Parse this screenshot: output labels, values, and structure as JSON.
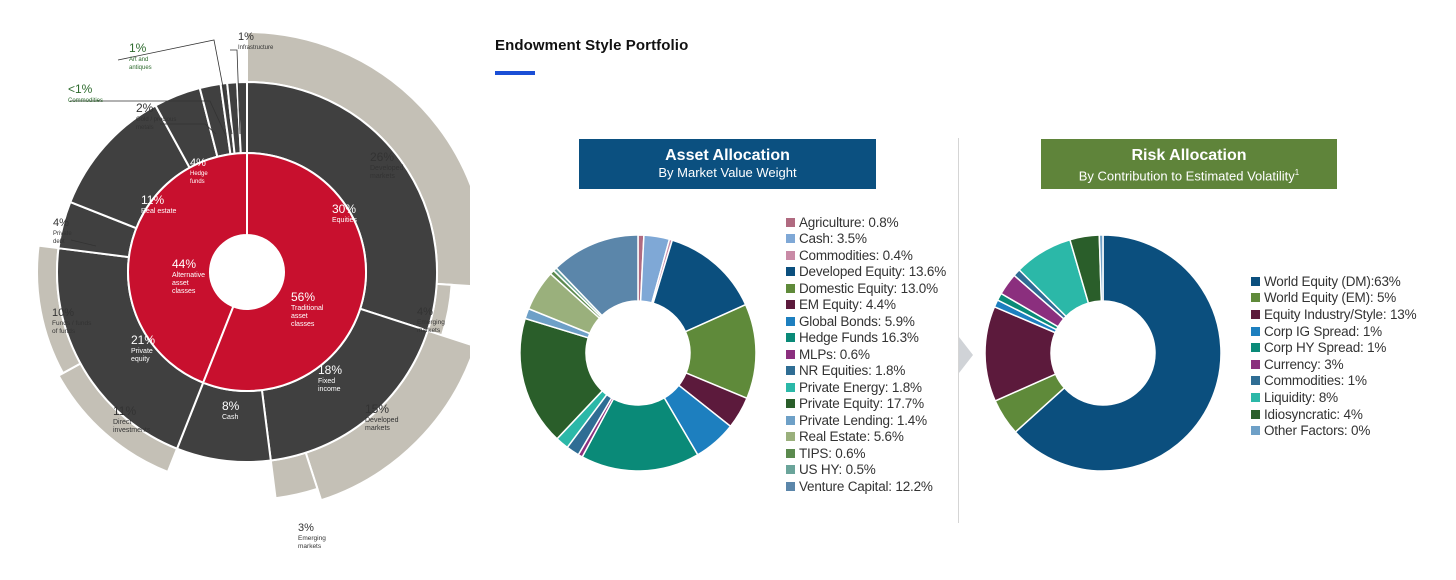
{
  "sunburst": {
    "inner": [
      {
        "pct": "44%",
        "name": "Alternative\nasset\nclasses",
        "value": 44,
        "color": "#c8102e"
      },
      {
        "pct": "56%",
        "name": "Traditional\nasset\nclasses",
        "value": 56,
        "color": "#c8102e"
      }
    ],
    "middle": [
      {
        "pct": "30%",
        "name": "Equities",
        "value": 30
      },
      {
        "pct": "18%",
        "name": "Fixed\nincome",
        "value": 18
      },
      {
        "pct": "8%",
        "name": "Cash",
        "value": 8
      },
      {
        "pct": "21%",
        "name": "Private\nequity",
        "value": 21
      },
      {
        "pct": "4%",
        "name": "Private\ndebt",
        "value": 4
      },
      {
        "pct": "11%",
        "name": "Real estate",
        "value": 11
      },
      {
        "pct": "4%",
        "name": "Hedge\nfunds",
        "value": 4
      },
      {
        "pct": "2%",
        "name": "Gold / precious\nmetals",
        "value": 2
      },
      {
        "pct": "<1%",
        "name": "Commodities",
        "value": 1
      },
      {
        "pct": "1%",
        "name": "Art and\nantiques",
        "value": 1
      },
      {
        "pct": "1%",
        "name": "Infrastructure",
        "value": 1
      }
    ],
    "outer": [
      {
        "pct": "26%",
        "name": "Developed\nmarkets",
        "value": 26
      },
      {
        "pct": "4%",
        "name": "Emerging\nmarkets",
        "value": 4
      },
      {
        "pct": "15%",
        "name": "Developed\nmarkets",
        "value": 15
      },
      {
        "pct": "3%",
        "name": "Emerging\nmarkets",
        "value": 3
      },
      {
        "pct": "11%",
        "name": "Direct\ninvestments",
        "value": 11
      },
      {
        "pct": "10%",
        "name": "Funds / funds\nof funds",
        "value": 10
      }
    ],
    "colors": {
      "dark": "#404040",
      "outer": "#c4c0b6",
      "red": "#c8102e"
    }
  },
  "header": {
    "title": "Endowment Style Portfolio",
    "accent": "#1a4fd6"
  },
  "chart_data": [
    {
      "type": "pie",
      "title": "Asset Allocation",
      "subtitle": "By Market Value Weight",
      "header_color": "#0b5080",
      "labels": [
        "Agriculture: 0.8%",
        "Cash: 3.5%",
        "Commodities: 0.4%",
        "Developed Equity: 13.6%",
        "Domestic Equity: 13.0%",
        "EM Equity: 4.4%",
        "Global Bonds: 5.9%",
        "Hedge Funds 16.3%",
        "MLPs: 0.6%",
        "NR Equities: 1.8%",
        "Private Energy: 1.8%",
        "Private Equity: 17.7%",
        "Private Lending: 1.4%",
        "Real Estate: 5.6%",
        "TIPS: 0.6%",
        "US HY: 0.5%",
        "Venture Capital: 12.2%"
      ],
      "values": [
        0.8,
        3.5,
        0.4,
        13.6,
        13.0,
        4.4,
        5.9,
        16.3,
        0.6,
        1.8,
        1.8,
        17.7,
        1.4,
        5.6,
        0.6,
        0.5,
        12.2
      ],
      "colors": [
        "#b06a80",
        "#7fa8d6",
        "#c98aa6",
        "#0b4f7e",
        "#5f8a3a",
        "#5c1a3c",
        "#1d7fbf",
        "#0a8a78",
        "#8b2f7e",
        "#2f6d94",
        "#2bb8a8",
        "#2a5e2a",
        "#6ea0c7",
        "#9ab07c",
        "#5b8a4e",
        "#6aa49a",
        "#5b86aa"
      ]
    },
    {
      "type": "pie",
      "title": "Risk Allocation",
      "subtitle": "By Contribution to Estimated Volatility",
      "subtitle_sup": "1",
      "header_color": "#5f843a",
      "labels": [
        "World Equity (DM):63%",
        "World Equity (EM): 5%",
        "Equity Industry/Style: 13%",
        "Corp IG Spread: 1%",
        "Corp HY Spread: 1%",
        "Currency: 3%",
        "Commodities: 1%",
        "Liquidity: 8%",
        "Idiosyncratic: 4%",
        "Other Factors: 0%"
      ],
      "values": [
        63,
        5,
        13,
        1,
        1,
        3,
        1,
        8,
        4,
        0.5
      ],
      "colors": [
        "#0b4f7e",
        "#5f8a3a",
        "#5c1a3c",
        "#1d7fbf",
        "#0a8a78",
        "#8b2f7e",
        "#2f6d94",
        "#2bb8a8",
        "#2a5e2a",
        "#6ea0c7"
      ]
    }
  ]
}
